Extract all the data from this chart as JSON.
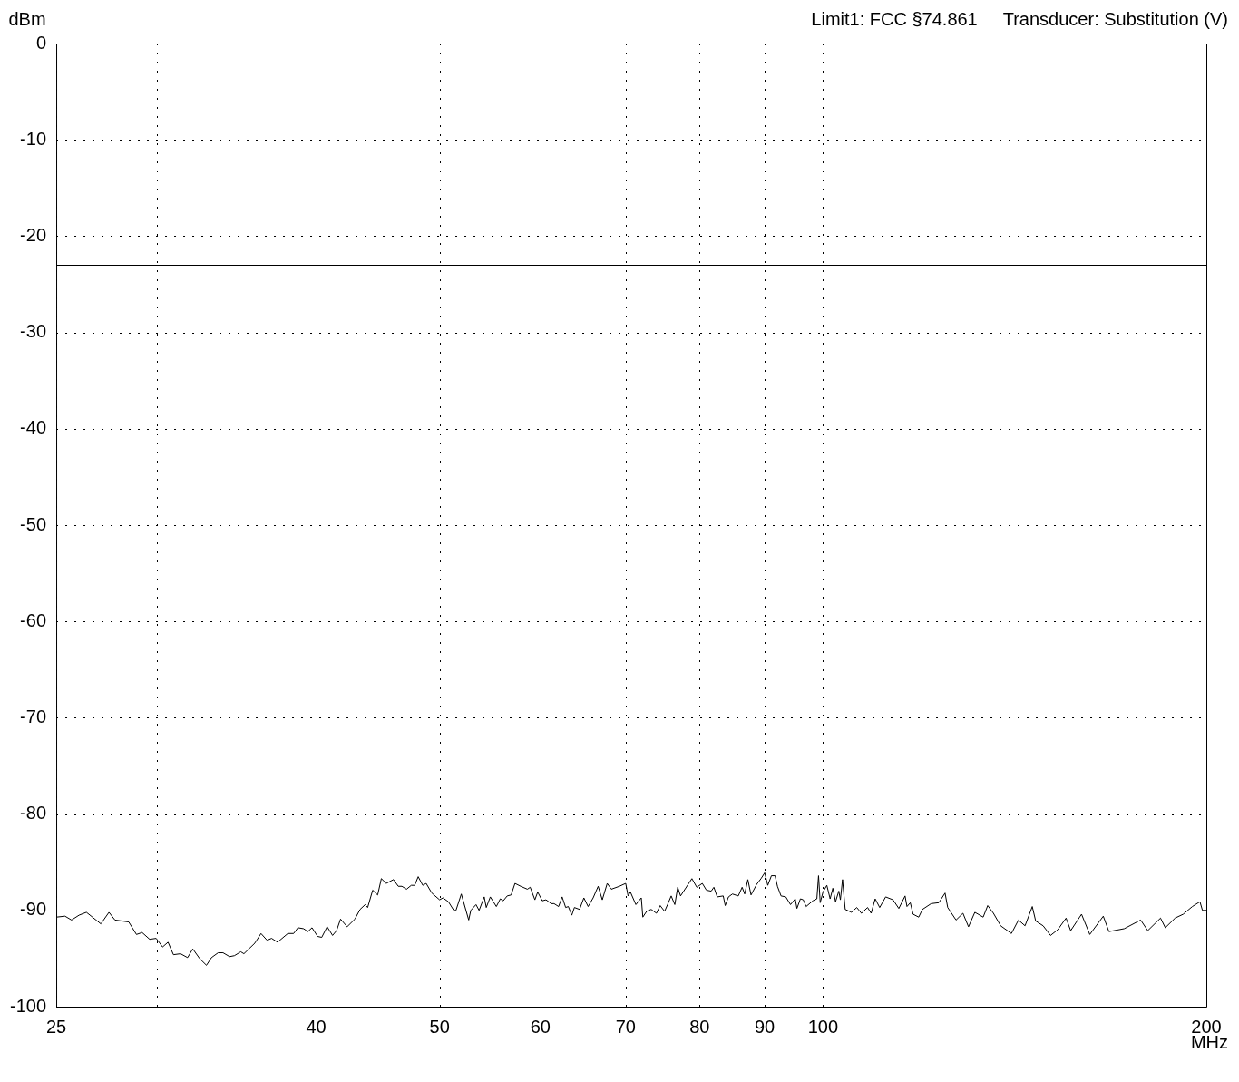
{
  "chart_data": {
    "type": "line",
    "xlabel": "MHz",
    "ylabel": "dBm",
    "annotations": [
      "Limit1: FCC §74.861",
      "Transducer: Substitution (V)"
    ],
    "log": "x",
    "grid": true,
    "marker": "none",
    "line_style": "solid",
    "legend": false,
    "xlim": [
      25,
      200
    ],
    "xticks": [
      25,
      {
        "value": 30,
        "label": null
      },
      40,
      50,
      60,
      70,
      80,
      90,
      100,
      200
    ],
    "ylim": [
      -100,
      0
    ],
    "yticks": [
      0,
      -10,
      -20,
      -30,
      -40,
      -50,
      -60,
      -70,
      -80,
      -90,
      -100
    ],
    "ref_lines": [
      {
        "axis": "y",
        "value": -23,
        "color": "#000000",
        "line_style": "solid"
      }
    ],
    "series": [
      {
        "color": "#000000",
        "x": [
          25,
          25.4,
          25.7,
          26.05,
          26.4,
          27.1,
          27.5,
          27.8,
          28.5,
          28.9,
          29.2,
          29.6,
          29.95,
          30.3,
          30.6,
          30.9,
          31.3,
          31.7,
          32.0,
          32.4,
          32.8,
          33.1,
          33.5,
          33.8,
          34.2,
          34.5,
          34.9,
          35.1,
          35.8,
          36.2,
          36.6,
          36.9,
          37.3,
          38.0,
          38.4,
          38.7,
          39.1,
          39.4,
          39.7,
          40.1,
          40.4,
          40.8,
          41.2,
          41.5,
          41.8,
          42.3,
          42.9,
          43.3,
          43.7,
          43.9,
          44.3,
          44.7,
          45.0,
          45.4,
          46.0,
          46.4,
          46.7,
          47.1,
          47.5,
          47.8,
          48.1,
          48.5,
          48.8,
          49.3,
          50,
          50.3,
          50.8,
          51.3,
          51.5,
          52.0,
          52.7,
          52.9,
          53.4,
          53.7,
          54.2,
          54.4,
          54.8,
          55.4,
          55.8,
          56.1,
          56.5,
          56.9,
          57.3,
          57.9,
          58.6,
          58.9,
          59.4,
          59.7,
          60.2,
          60.6,
          61.2,
          61.5,
          62.0,
          62.4,
          62.8,
          63.1,
          63.5,
          63.8,
          64.4,
          64.9,
          65.4,
          66.0,
          66.6,
          67.1,
          67.7,
          68.2,
          69.2,
          70,
          70.3,
          70.6,
          71.3,
          72.0,
          72.2,
          72.7,
          73.3,
          74.0,
          74.5,
          75.1,
          75.5,
          76.0,
          76.5,
          76.9,
          77.3,
          78.9,
          79.6,
          80.4,
          81.0,
          81.7,
          82.1,
          82.6,
          83.5,
          83.8,
          84.3,
          84.9,
          85.8,
          86.4,
          86.8,
          87.3,
          87.8,
          88.7,
          89.4,
          90,
          90.5,
          91.1,
          91.7,
          92.1,
          92.7,
          93.5,
          94.3,
          95.1,
          95.4,
          96.0,
          96.5,
          97.0,
          98.2,
          98.9,
          99.2,
          99.5,
          100,
          100.7,
          101.3,
          101.8,
          102.3,
          102.9,
          103.2,
          103.6,
          104.1,
          105.3,
          106.3,
          107.2,
          108.4,
          109.1,
          109.9,
          110.8,
          112.0,
          113.5,
          114.7,
          116.0,
          116.4,
          117.1,
          117.7,
          118.9,
          119.7,
          121.6,
          123.3,
          124.7,
          125.3,
          127.2,
          128.8,
          130.1,
          131.6,
          133.6,
          134.7,
          136.1,
          137.9,
          140.6,
          142.4,
          144.1,
          146.0,
          146.9,
          148.9,
          150.9,
          152.9,
          155.2,
          156.5,
          159.6,
          162.0,
          166.0,
          167.7,
          172.4,
          177.6,
          179.9,
          184.1,
          185.7,
          189.0,
          191.8,
          195.0,
          197.7,
          198.6,
          200
        ],
        "values": [
          -90.7,
          -90.6,
          -91.0,
          -90.5,
          -90.2,
          -91.4,
          -90.2,
          -91.0,
          -91.2,
          -92.5,
          -92.3,
          -93.0,
          -92.9,
          -93.8,
          -93.3,
          -94.6,
          -94.5,
          -94.9,
          -94.0,
          -95.0,
          -95.7,
          -94.9,
          -94.4,
          -94.4,
          -94.8,
          -94.7,
          -94.3,
          -94.5,
          -93.4,
          -92.4,
          -93.1,
          -92.9,
          -93.3,
          -92.4,
          -92.4,
          -91.8,
          -91.9,
          -92.2,
          -91.8,
          -92.7,
          -92.8,
          -91.7,
          -92.6,
          -92.1,
          -90.9,
          -91.7,
          -90.9,
          -89.9,
          -89.4,
          -89.7,
          -87.9,
          -88.4,
          -86.7,
          -87.2,
          -86.8,
          -87.5,
          -87.5,
          -87.8,
          -87.4,
          -87.4,
          -86.5,
          -87.4,
          -87.2,
          -88.2,
          -88.9,
          -88.7,
          -89.1,
          -90.0,
          -90.0,
          -88.3,
          -91.0,
          -90.0,
          -89.4,
          -90.0,
          -88.6,
          -89.7,
          -88.6,
          -89.6,
          -88.8,
          -89.0,
          -88.5,
          -88.4,
          -87.2,
          -87.5,
          -87.8,
          -87.6,
          -88.9,
          -88.1,
          -89.0,
          -88.9,
          -89.3,
          -89.3,
          -89.6,
          -88.6,
          -89.7,
          -89.6,
          -90.5,
          -89.7,
          -89.9,
          -88.7,
          -89.6,
          -88.7,
          -87.5,
          -88.9,
          -87.2,
          -87.8,
          -87.5,
          -87.2,
          -88.5,
          -88.1,
          -89.4,
          -88.7,
          -90.7,
          -90.1,
          -89.9,
          -90.3,
          -89.5,
          -90.1,
          -89.4,
          -88.5,
          -89.4,
          -87.6,
          -88.5,
          -86.7,
          -87.6,
          -87.2,
          -87.9,
          -88.0,
          -87.6,
          -88.6,
          -88.5,
          -89.5,
          -88.6,
          -88.3,
          -88.5,
          -87.6,
          -88.3,
          -86.8,
          -88.4,
          -87.3,
          -86.7,
          -86.1,
          -87.4,
          -86.4,
          -86.4,
          -87.5,
          -88.5,
          -88.6,
          -89.4,
          -88.8,
          -89.8,
          -88.8,
          -88.9,
          -89.6,
          -89.0,
          -88.8,
          -86.4,
          -89.2,
          -88.1,
          -87.4,
          -88.8,
          -87.7,
          -89.1,
          -88.0,
          -88.9,
          -86.8,
          -89.9,
          -90.2,
          -89.7,
          -90.3,
          -89.7,
          -90.3,
          -88.8,
          -89.7,
          -88.6,
          -88.9,
          -89.8,
          -88.5,
          -89.6,
          -89.2,
          -90.4,
          -90.7,
          -89.9,
          -89.3,
          -89.2,
          -88.2,
          -89.7,
          -91.0,
          -90.3,
          -91.7,
          -90.2,
          -90.7,
          -89.5,
          -90.3,
          -91.6,
          -92.4,
          -91.0,
          -91.6,
          -89.6,
          -91.1,
          -91.6,
          -92.6,
          -92.0,
          -90.8,
          -92.1,
          -90.4,
          -92.5,
          -90.6,
          -92.2,
          -91.9,
          -91.0,
          -92.1,
          -90.8,
          -91.8,
          -90.8,
          -90.4,
          -89.6,
          -89.1,
          -90.0,
          -90.0
        ]
      }
    ]
  }
}
